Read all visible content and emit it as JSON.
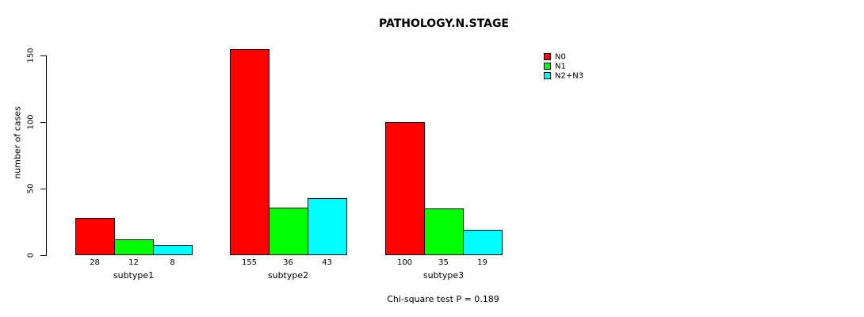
{
  "chart_data": {
    "type": "bar",
    "title": "PATHOLOGY.N.STAGE",
    "ylabel": "number of cases",
    "xlabel": "",
    "categories": [
      "subtype1",
      "subtype2",
      "subtype3"
    ],
    "series": [
      {
        "name": "N0",
        "color": "#ff0000",
        "values": [
          28,
          155,
          100
        ]
      },
      {
        "name": "N1",
        "color": "#00ff00",
        "values": [
          12,
          36,
          35
        ]
      },
      {
        "name": "N2+N3",
        "color": "#00ffff",
        "values": [
          8,
          43,
          19
        ]
      }
    ],
    "value_labels_shown": true,
    "yticks": [
      0,
      50,
      100,
      150
    ],
    "ylim": [
      0,
      150
    ],
    "grid": false,
    "legend_position": "top-right",
    "bar_border_color": "#000000",
    "annotation": "Chi-square test P = 0.189"
  }
}
